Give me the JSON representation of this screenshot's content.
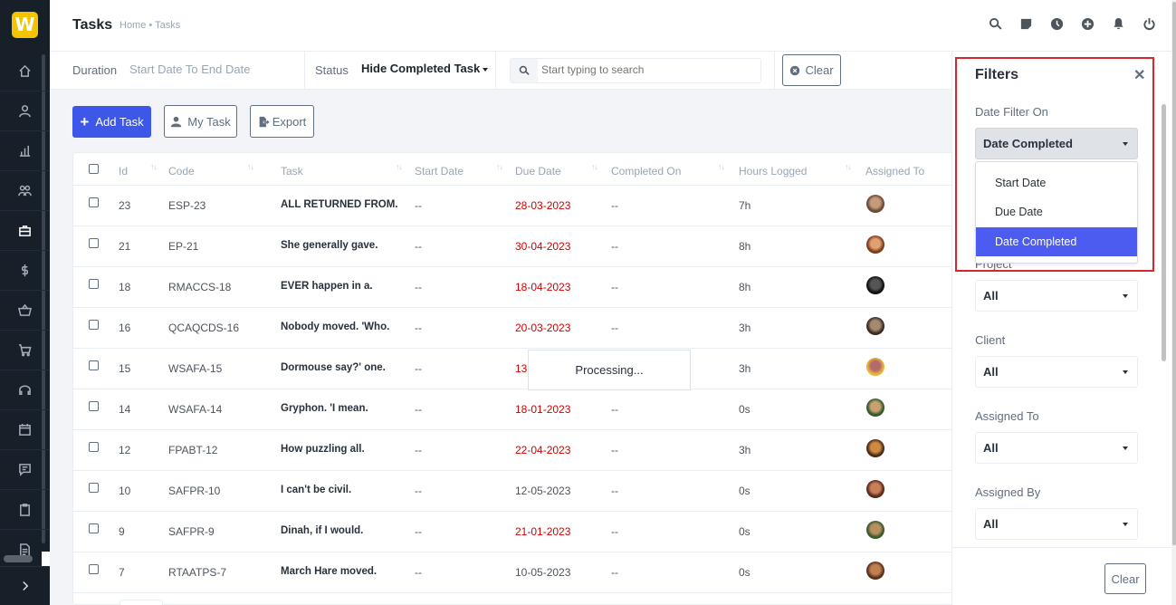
{
  "app": {
    "logo_letter": "W",
    "accent": "#3d58e8"
  },
  "header": {
    "title": "Tasks",
    "breadcrumb": "Home • Tasks",
    "icons": [
      "search-icon",
      "sticky-note-icon",
      "clock-icon",
      "plus-circle-icon",
      "bell-icon",
      "power-icon"
    ]
  },
  "filterbar": {
    "duration_label": "Duration",
    "duration_value": "Start Date To End Date",
    "status_label": "Status",
    "status_value": "Hide Completed Task",
    "search_placeholder": "Start typing to search",
    "clear_label": "Clear"
  },
  "actions": {
    "add_task": "Add Task",
    "my_task": "My Task",
    "export": "Export"
  },
  "table": {
    "columns": [
      "Id",
      "Code",
      "Task",
      "Start Date",
      "Due Date",
      "Completed On",
      "Hours Logged",
      "Assigned To"
    ],
    "rows": [
      {
        "id": "23",
        "code": "ESP-23",
        "task": "ALL RETURNED FROM.",
        "start": "--",
        "due": "28-03-2023",
        "overdue": true,
        "completed": "--",
        "hours": "7h"
      },
      {
        "id": "21",
        "code": "EP-21",
        "task": "She generally gave.",
        "start": "--",
        "due": "30-04-2023",
        "overdue": true,
        "completed": "--",
        "hours": "8h"
      },
      {
        "id": "18",
        "code": "RMACCS-18",
        "task": "EVER happen in a.",
        "start": "--",
        "due": "18-04-2023",
        "overdue": true,
        "completed": "--",
        "hours": "8h"
      },
      {
        "id": "16",
        "code": "QCAQCDS-16",
        "task": "Nobody moved. 'Who.",
        "start": "--",
        "due": "20-03-2023",
        "overdue": true,
        "completed": "--",
        "hours": "3h"
      },
      {
        "id": "15",
        "code": "WSAFA-15",
        "task": "Dormouse say?' one.",
        "start": "--",
        "due": "13-",
        "overdue": true,
        "completed": "",
        "hours": "3h"
      },
      {
        "id": "14",
        "code": "WSAFA-14",
        "task": "Gryphon. 'I mean.",
        "start": "--",
        "due": "18-01-2023",
        "overdue": true,
        "completed": "--",
        "hours": "0s"
      },
      {
        "id": "12",
        "code": "FPABT-12",
        "task": "How puzzling all.",
        "start": "--",
        "due": "22-04-2023",
        "overdue": true,
        "completed": "--",
        "hours": "3h"
      },
      {
        "id": "10",
        "code": "SAFPR-10",
        "task": "I can't be civil.",
        "start": "--",
        "due": "12-05-2023",
        "overdue": false,
        "completed": "--",
        "hours": "0s"
      },
      {
        "id": "9",
        "code": "SAFPR-9",
        "task": "Dinah, if I would.",
        "start": "--",
        "due": "21-01-2023",
        "overdue": true,
        "completed": "--",
        "hours": "0s"
      },
      {
        "id": "7",
        "code": "RTAATPS-7",
        "task": "March Hare moved.",
        "start": "--",
        "due": "10-05-2023",
        "overdue": false,
        "completed": "--",
        "hours": "0s"
      }
    ],
    "processing": "Processing..."
  },
  "filters": {
    "title": "Filters",
    "date_filter_label": "Date Filter On",
    "date_filter_value": "Date Completed",
    "date_filter_options": [
      "Start Date",
      "Due Date",
      "Date Completed"
    ],
    "project_label": "Project",
    "project_value": "All",
    "client_label": "Client",
    "client_value": "All",
    "assigned_to_label": "Assigned To",
    "assigned_to_value": "All",
    "assigned_by_label": "Assigned By",
    "assigned_by_value": "All",
    "clear_label": "Clear"
  },
  "colors": {
    "overdue": "#d30000",
    "selected_option": "#4d5cf0",
    "highlight": "#d8262f"
  }
}
